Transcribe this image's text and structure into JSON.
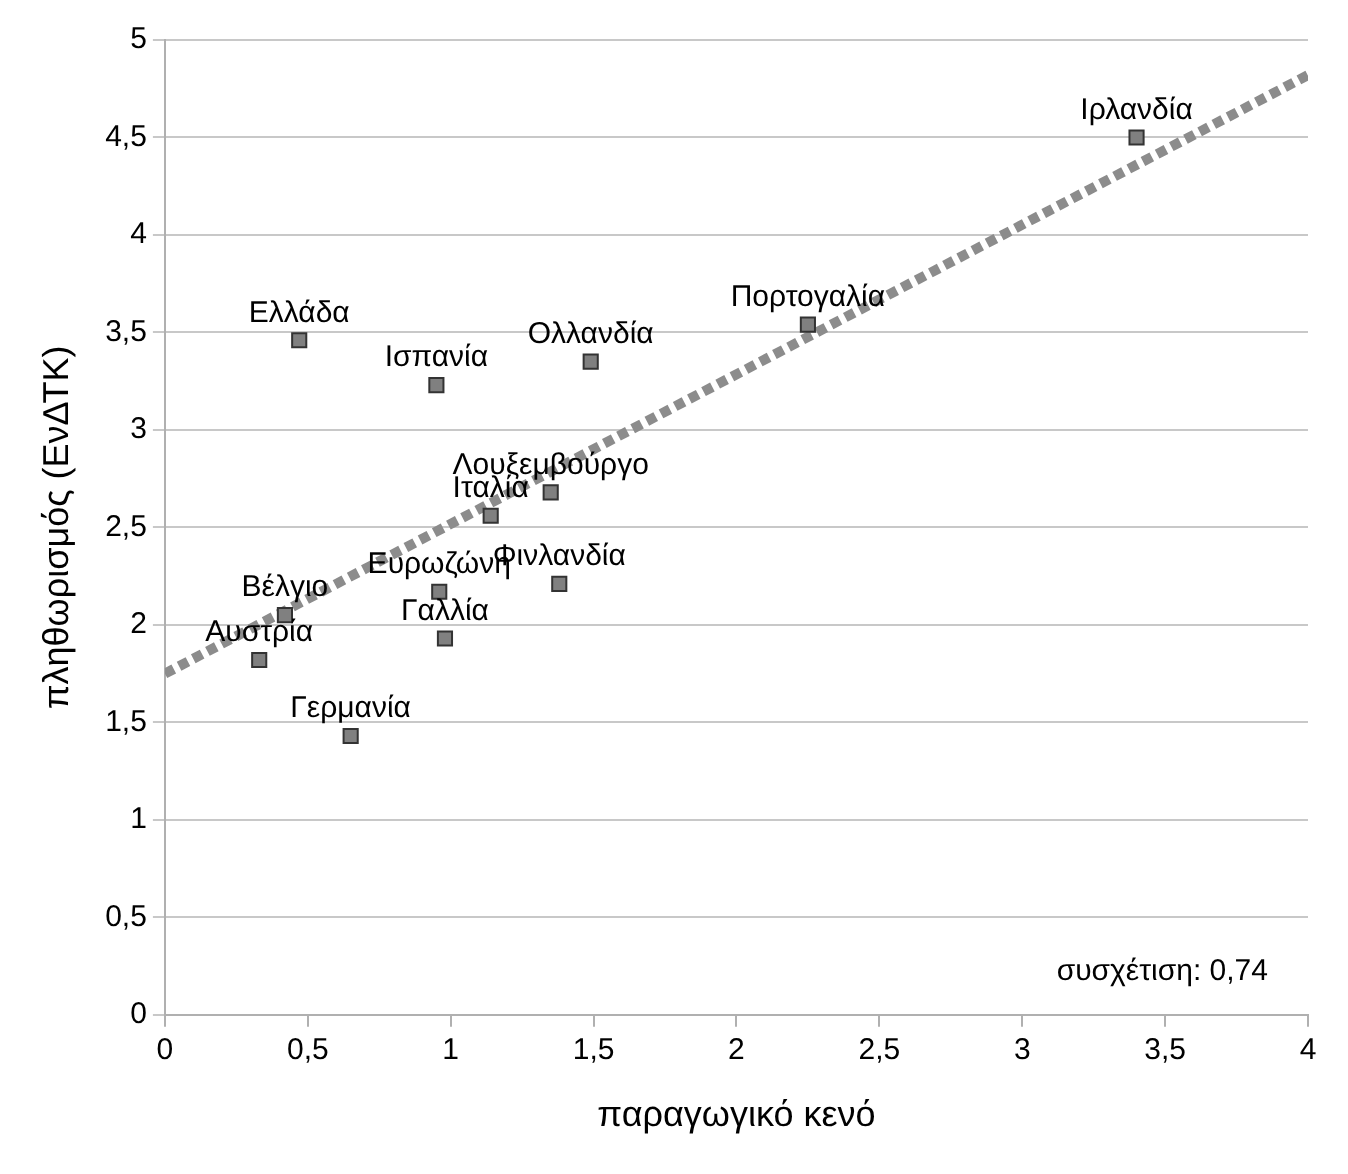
{
  "chart_data": {
    "type": "scatter",
    "xlabel": "παραγωγικό κενό",
    "ylabel": "πληθωρισμός (ΕνΔΤΚ)",
    "xlim": [
      0,
      4
    ],
    "ylim": [
      0,
      5
    ],
    "xticks": [
      0,
      {
        "value": 0.5,
        "label": "0,5"
      },
      1,
      {
        "value": 1.5,
        "label": "1,5"
      },
      2,
      {
        "value": 2.5,
        "label": "2,5"
      },
      3,
      {
        "value": 3.5,
        "label": "3,5"
      },
      4
    ],
    "yticks": [
      0,
      {
        "value": 0.5,
        "label": "0,5"
      },
      1,
      {
        "value": 1.5,
        "label": "1,5"
      },
      2,
      {
        "value": 2.5,
        "label": "2,5"
      },
      3,
      {
        "value": 3.5,
        "label": "3,5"
      },
      4,
      {
        "value": 4.5,
        "label": "4,5"
      },
      5
    ],
    "grid": "y",
    "legend": false,
    "series": [
      {
        "color": "#808080",
        "marker": "square",
        "x": [
          3.4,
          2.25,
          0.47,
          0.95,
          1.49,
          1.35,
          1.14,
          1.38,
          0.96,
          0.42,
          0.33,
          0.98,
          0.65
        ],
        "values": [
          4.5,
          3.54,
          3.46,
          3.23,
          3.35,
          2.68,
          2.56,
          2.21,
          2.17,
          2.05,
          1.82,
          1.93,
          1.43
        ]
      },
      {
        "type": "line",
        "color": "#8c8c8c",
        "line_style": "dashed",
        "marker": "none",
        "x": [
          0,
          4
        ],
        "values": [
          1.75,
          4.82
        ]
      }
    ],
    "annotations": [
      {
        "text": "Ιρλανδία",
        "x": 3.4,
        "y": 4.5
      },
      {
        "text": "Πορτογαλία",
        "x": 2.25,
        "y": 3.54
      },
      {
        "text": "Ελλάδα",
        "x": 0.47,
        "y": 3.46
      },
      {
        "text": "Ισπανία",
        "x": 0.95,
        "y": 3.23
      },
      {
        "text": "Ολλανδία",
        "x": 1.49,
        "y": 3.35
      },
      {
        "text": "Λουξεμβούργο",
        "x": 1.35,
        "y": 2.68
      },
      {
        "text": "Ιταλία",
        "x": 1.14,
        "y": 2.56
      },
      {
        "text": "Φινλανδία",
        "x": 1.38,
        "y": 2.21
      },
      {
        "text": "Ευρωζώνη",
        "x": 0.96,
        "y": 2.17
      },
      {
        "text": "Βέλγιο",
        "x": 0.42,
        "y": 2.05
      },
      {
        "text": "Αυστρία",
        "x": 0.33,
        "y": 1.82
      },
      {
        "text": "Γαλλία",
        "x": 0.98,
        "y": 1.93
      },
      {
        "text": "Γερμανία",
        "x": 0.65,
        "y": 1.43
      },
      "συσχέτιση: 0,74"
    ]
  }
}
